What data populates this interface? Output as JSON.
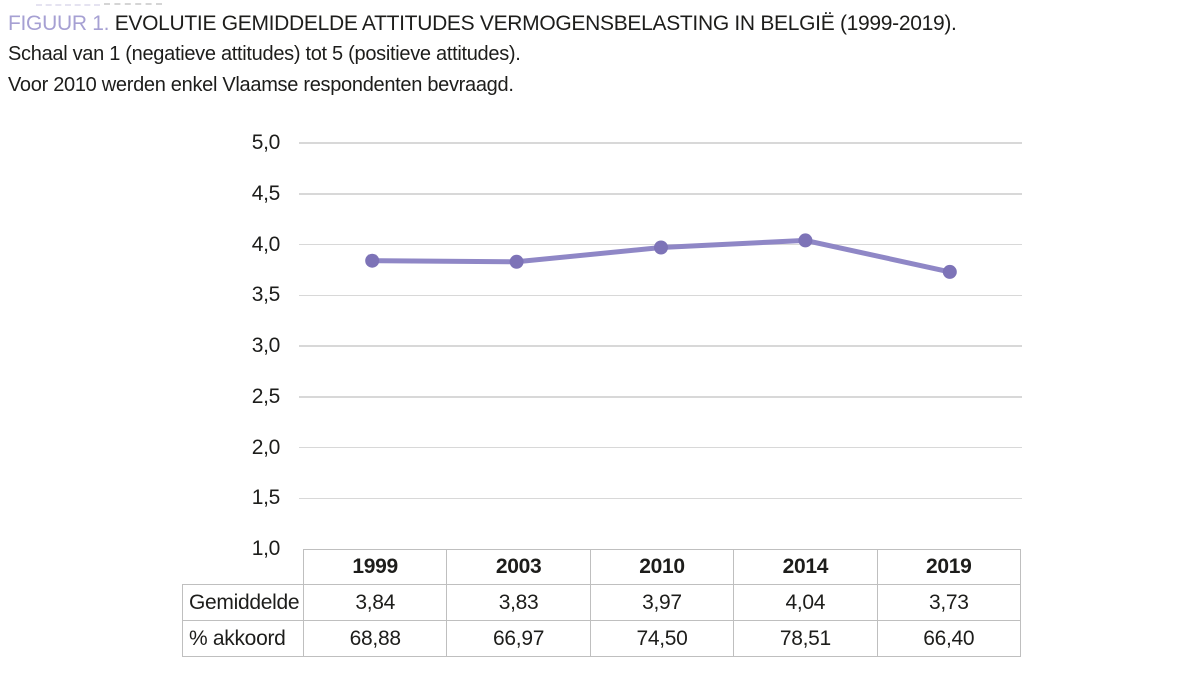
{
  "caption": {
    "label": "FIGUUR 1.",
    "title": "EVOLUTIE GEMIDDELDE ATTITUDES VERMOGENSBELASTING IN BELGIË (1999-2019).",
    "subtitle_scale": "Schaal van 1 (negatieve attitudes) tot 5 (positieve attitudes).",
    "subtitle_note": "Voor 2010 werden enkel Vlaamse respondenten bevraagd."
  },
  "colors": {
    "figure_label": "#a6a0d3",
    "text": "#1d1d1b",
    "line": "#8f87c6",
    "marker": "#7d73b7",
    "gridline": "#d8d8d8",
    "table_border": "#bfbfbf"
  },
  "chart_data": {
    "type": "line",
    "title": "Evolutie gemiddelde attitudes vermogensbelasting in België (1999-2019)",
    "categories": [
      "1999",
      "2003",
      "2010",
      "2014",
      "2019"
    ],
    "series": [
      {
        "name": "Gemiddelde",
        "values": [
          3.84,
          3.83,
          3.97,
          4.04,
          3.73
        ],
        "plotted": true
      },
      {
        "name": "% akkoord",
        "values": [
          68.88,
          66.97,
          74.5,
          78.51,
          66.4
        ],
        "plotted": false
      }
    ],
    "xlabel": "",
    "ylabel": "",
    "ylim": [
      1.0,
      5.0
    ],
    "ytick_step": 0.5,
    "decimal_separator": ",",
    "value_decimals": 2,
    "grid": true,
    "legend": "none",
    "table_below": true
  }
}
